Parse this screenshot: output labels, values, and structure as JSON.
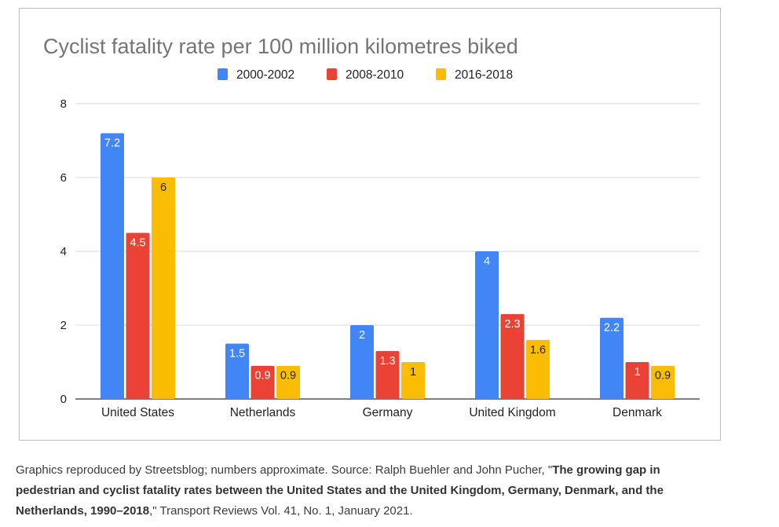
{
  "chart_data": {
    "type": "bar",
    "title": "Cyclist fatality rate per 100 million kilometres biked",
    "categories": [
      "United States",
      "Netherlands",
      "Germany",
      "United Kingdom",
      "Denmark"
    ],
    "series": [
      {
        "name": "2000-2002",
        "color": "#4285f4",
        "values": [
          7.2,
          1.5,
          2,
          4,
          2.2
        ],
        "labels": [
          "7.2",
          "1.5",
          "2",
          "4",
          "2.2"
        ]
      },
      {
        "name": "2008-2010",
        "color": "#ea4335",
        "values": [
          4.5,
          0.9,
          1.3,
          2.3,
          1
        ],
        "labels": [
          "4.5",
          "0.9",
          "1.3",
          "2.3",
          "1"
        ]
      },
      {
        "name": "2016-2018",
        "color": "#fbbc04",
        "values": [
          6,
          0.9,
          1,
          1.6,
          0.9
        ],
        "labels": [
          "6",
          "0.9",
          "1",
          "1.6",
          "0.9"
        ]
      }
    ],
    "yticks": [
      "0",
      "2",
      "4",
      "6",
      "8"
    ],
    "ylim": [
      0,
      8
    ],
    "xlabel": "",
    "ylabel": "",
    "grid": true,
    "legend": "top-center"
  },
  "caption": {
    "part1": "Graphics reproduced by Streetsblog; numbers approximate. Source: Ralph Buehler and John Pucher, \"",
    "bold": "The growing gap in pedestrian and cyclist fatality rates between the United States and the United Kingdom, Germany, Denmark, and the Netherlands, 1990–2018",
    "part2": ",\" Transport Reviews Vol. 41, No. 1, January 2021."
  }
}
